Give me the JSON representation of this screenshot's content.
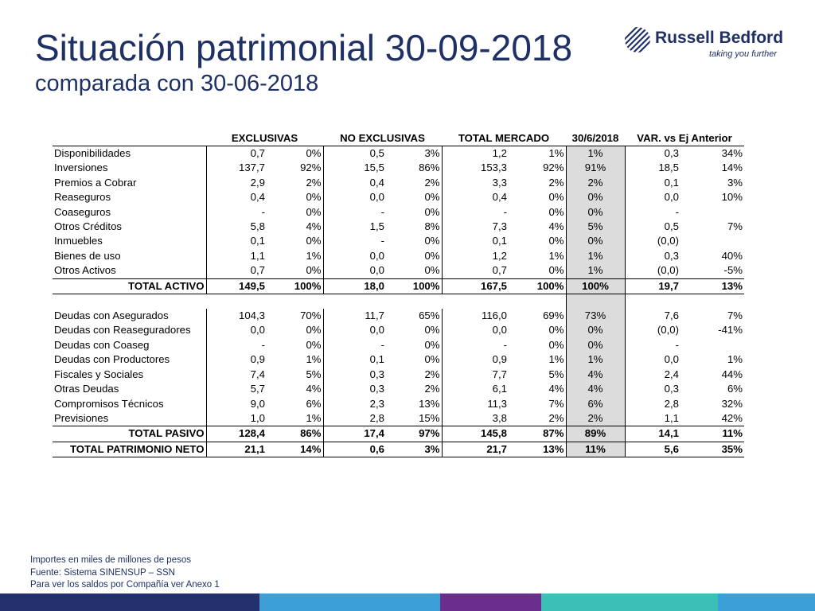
{
  "title": "Situación patrimonial 30-09-2018",
  "subtitle": "comparada con 30-06-2018",
  "logo": {
    "name": "Russell Bedford",
    "tagline": "taking you further"
  },
  "headers": [
    "EXCLUSIVAS",
    "NO EXCLUSIVAS",
    "TOTAL MERCADO",
    "30/6/2018",
    "VAR. vs Ej Anterior"
  ],
  "assets": [
    {
      "label": "Disponibilidades",
      "ex": "0,7",
      "exp": "0%",
      "nex": "0,5",
      "nexp": "3%",
      "tot": "1,2",
      "totp": "1%",
      "prev": "1%",
      "var": "0,3",
      "varp": "34%"
    },
    {
      "label": "Inversiones",
      "ex": "137,7",
      "exp": "92%",
      "nex": "15,5",
      "nexp": "86%",
      "tot": "153,3",
      "totp": "92%",
      "prev": "91%",
      "var": "18,5",
      "varp": "14%"
    },
    {
      "label": "Premios a Cobrar",
      "ex": "2,9",
      "exp": "2%",
      "nex": "0,4",
      "nexp": "2%",
      "tot": "3,3",
      "totp": "2%",
      "prev": "2%",
      "var": "0,1",
      "varp": "3%"
    },
    {
      "label": "Reaseguros",
      "ex": "0,4",
      "exp": "0%",
      "nex": "0,0",
      "nexp": "0%",
      "tot": "0,4",
      "totp": "0%",
      "prev": "0%",
      "var": "0,0",
      "varp": "10%"
    },
    {
      "label": "Coaseguros",
      "ex": "-",
      "exp": "0%",
      "nex": "-",
      "nexp": "0%",
      "tot": "-",
      "totp": "0%",
      "prev": "0%",
      "var": "-",
      "varp": ""
    },
    {
      "label": "Otros Créditos",
      "ex": "5,8",
      "exp": "4%",
      "nex": "1,5",
      "nexp": "8%",
      "tot": "7,3",
      "totp": "4%",
      "prev": "5%",
      "var": "0,5",
      "varp": "7%"
    },
    {
      "label": "Inmuebles",
      "ex": "0,1",
      "exp": "0%",
      "nex": "-",
      "nexp": "0%",
      "tot": "0,1",
      "totp": "0%",
      "prev": "0%",
      "var": "(0,0)",
      "varp": ""
    },
    {
      "label": "Bienes de uso",
      "ex": "1,1",
      "exp": "1%",
      "nex": "0,0",
      "nexp": "0%",
      "tot": "1,2",
      "totp": "1%",
      "prev": "1%",
      "var": "0,3",
      "varp": "40%"
    },
    {
      "label": "Otros Activos",
      "ex": "0,7",
      "exp": "0%",
      "nex": "0,0",
      "nexp": "0%",
      "tot": "0,7",
      "totp": "0%",
      "prev": "1%",
      "var": "(0,0)",
      "varp": "-5%"
    }
  ],
  "total_activo": {
    "label": "TOTAL ACTIVO",
    "ex": "149,5",
    "exp": "100%",
    "nex": "18,0",
    "nexp": "100%",
    "tot": "167,5",
    "totp": "100%",
    "prev": "100%",
    "var": "19,7",
    "varp": "13%"
  },
  "liabilities": [
    {
      "label": "Deudas con Asegurados",
      "ex": "104,3",
      "exp": "70%",
      "nex": "11,7",
      "nexp": "65%",
      "tot": "116,0",
      "totp": "69%",
      "prev": "73%",
      "var": "7,6",
      "varp": "7%"
    },
    {
      "label": "Deudas con Reaseguradores",
      "ex": "0,0",
      "exp": "0%",
      "nex": "0,0",
      "nexp": "0%",
      "tot": "0,0",
      "totp": "0%",
      "prev": "0%",
      "var": "(0,0)",
      "varp": "-41%"
    },
    {
      "label": "Deudas con Coaseg",
      "ex": "-",
      "exp": "0%",
      "nex": "-",
      "nexp": "0%",
      "tot": "-",
      "totp": "0%",
      "prev": "0%",
      "var": "-",
      "varp": ""
    },
    {
      "label": "Deudas con Productores",
      "ex": "0,9",
      "exp": "1%",
      "nex": "0,1",
      "nexp": "0%",
      "tot": "0,9",
      "totp": "1%",
      "prev": "1%",
      "var": "0,0",
      "varp": "1%"
    },
    {
      "label": "Fiscales y Sociales",
      "ex": "7,4",
      "exp": "5%",
      "nex": "0,3",
      "nexp": "2%",
      "tot": "7,7",
      "totp": "5%",
      "prev": "4%",
      "var": "2,4",
      "varp": "44%"
    },
    {
      "label": "Otras Deudas",
      "ex": "5,7",
      "exp": "4%",
      "nex": "0,3",
      "nexp": "2%",
      "tot": "6,1",
      "totp": "4%",
      "prev": "4%",
      "var": "0,3",
      "varp": "6%"
    },
    {
      "label": "Compromisos Técnicos",
      "ex": "9,0",
      "exp": "6%",
      "nex": "2,3",
      "nexp": "13%",
      "tot": "11,3",
      "totp": "7%",
      "prev": "6%",
      "var": "2,8",
      "varp": "32%"
    },
    {
      "label": "Previsiones",
      "ex": "1,0",
      "exp": "1%",
      "nex": "2,8",
      "nexp": "15%",
      "tot": "3,8",
      "totp": "2%",
      "prev": "2%",
      "var": "1,1",
      "varp": "42%"
    }
  ],
  "total_pasivo": {
    "label": "TOTAL PASIVO",
    "ex": "128,4",
    "exp": "86%",
    "nex": "17,4",
    "nexp": "97%",
    "tot": "145,8",
    "totp": "87%",
    "prev": "89%",
    "var": "14,1",
    "varp": "11%"
  },
  "total_patrimonio": {
    "label": "TOTAL PATRIMONIO NETO",
    "ex": "21,1",
    "exp": "14%",
    "nex": "0,6",
    "nexp": "3%",
    "tot": "21,7",
    "totp": "13%",
    "prev": "11%",
    "var": "5,6",
    "varp": "35%"
  },
  "notes": [
    "Importes en miles de millones de pesos",
    "Fuente: Sistema SINENSUP – SSN",
    "Para ver los saldos por Compañía ver Anexo 1"
  ],
  "colors": {
    "title": "#1f3164",
    "shade": "#dcdcdc",
    "bar": [
      "#24306b",
      "#3d9fd8",
      "#6a2f8c",
      "#3cc0b5",
      "#3d9fd8"
    ]
  }
}
